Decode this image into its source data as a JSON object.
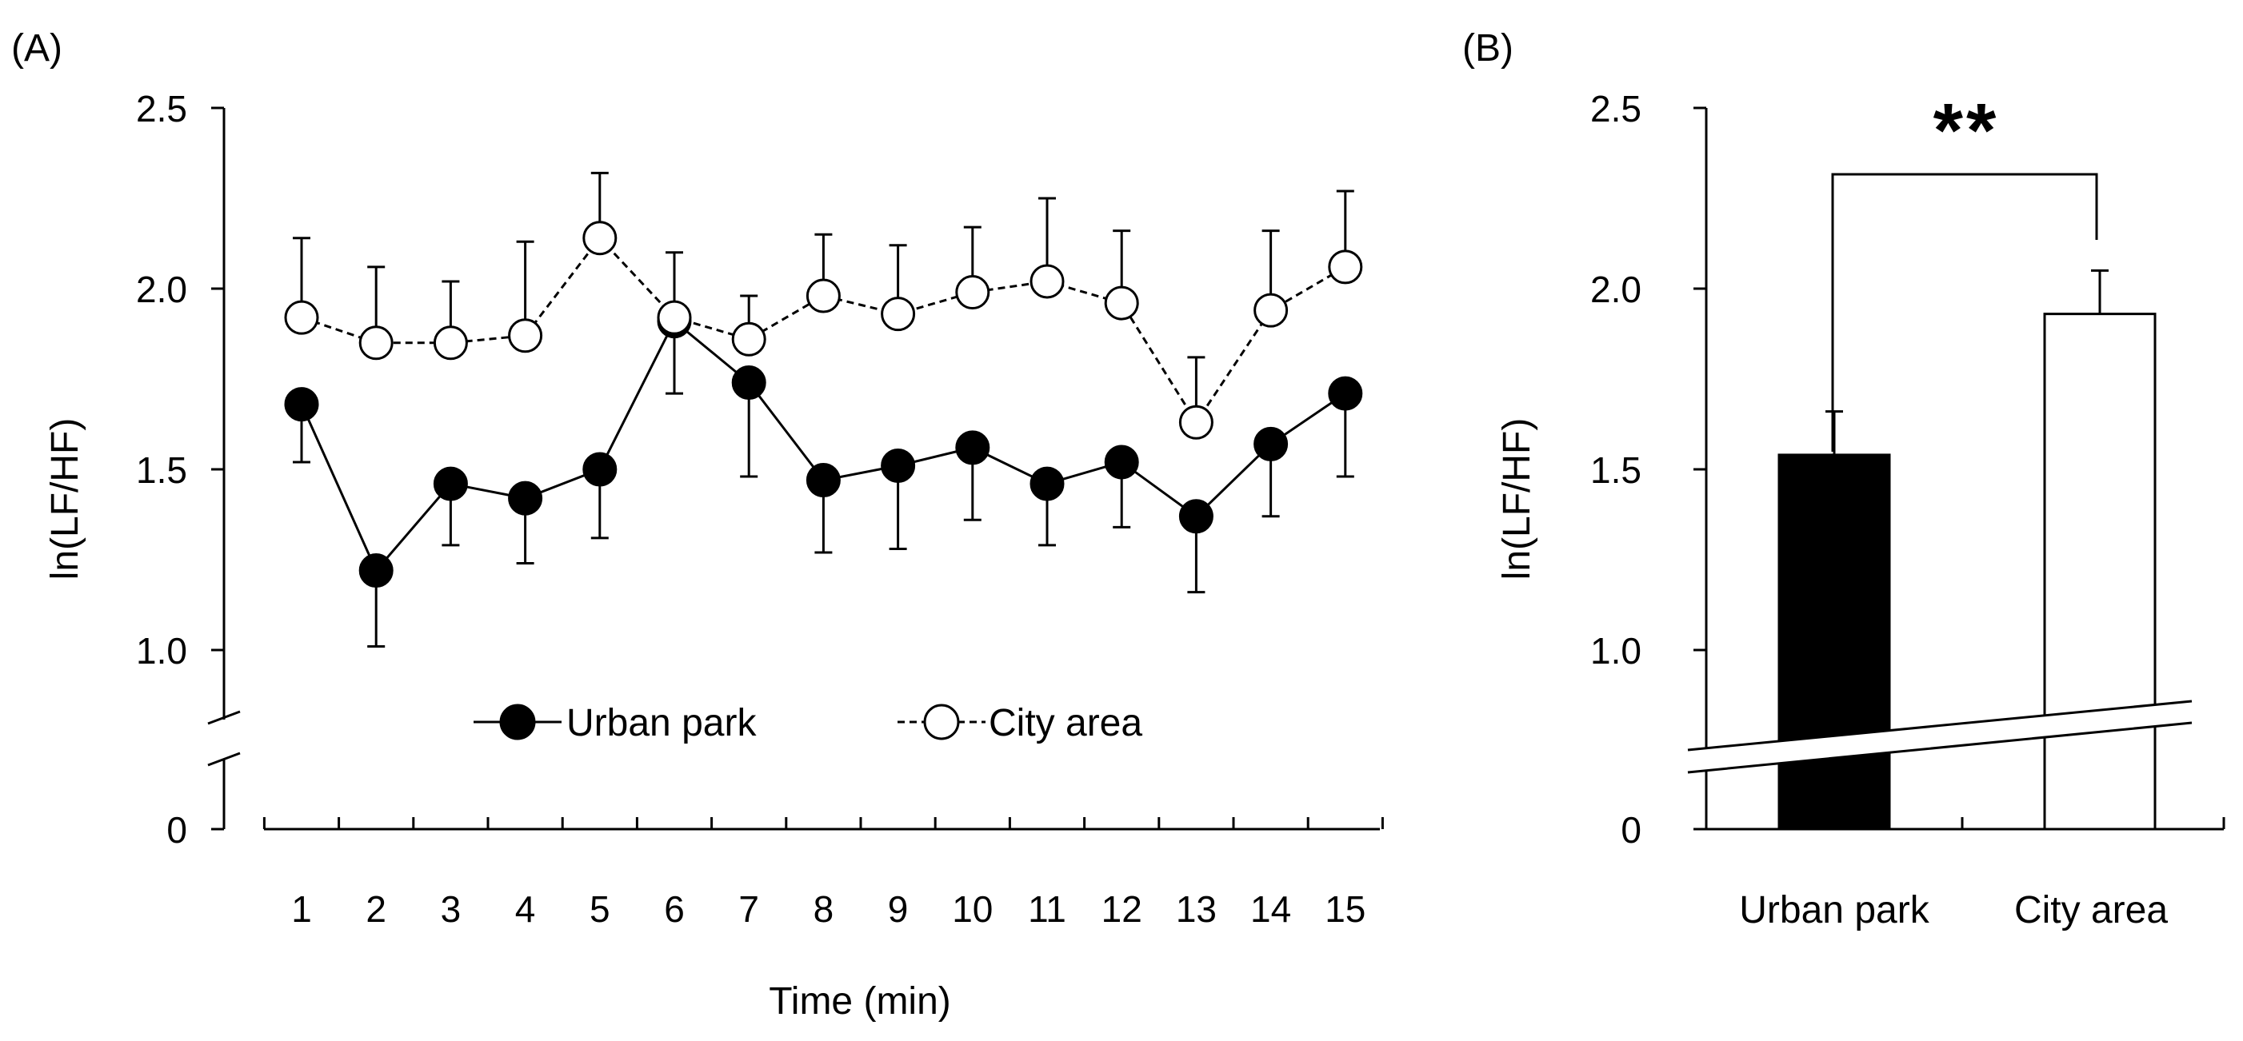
{
  "chart_data": [
    {
      "type": "line",
      "panel_label": "(A)",
      "xlabel": "Time (min)",
      "ylabel": "ln(LF/HF)",
      "ylim": [
        0,
        2.5
      ],
      "axis_break_below": 1.0,
      "y_ticks": [
        "0",
        "1.0",
        "1.5",
        "2.0",
        "2.5"
      ],
      "x_tick_labels": [
        "1",
        "2",
        "3",
        "4",
        "5",
        "6",
        "7",
        "8",
        "9",
        "10",
        "11",
        "12",
        "13",
        "14",
        "15"
      ],
      "legend": {
        "position": "bottom-center"
      },
      "series": [
        {
          "name": "Urban park",
          "marker": "filled-circle",
          "line": "solid",
          "values": [
            1.68,
            1.22,
            1.46,
            1.42,
            1.5,
            1.91,
            1.74,
            1.47,
            1.51,
            1.56,
            1.46,
            1.52,
            1.37,
            1.57,
            1.71
          ],
          "error_upper": [
            1.52,
            1.01,
            1.29,
            1.24,
            1.31,
            1.71,
            1.48,
            1.27,
            1.28,
            1.36,
            1.29,
            1.34,
            1.16,
            1.37,
            1.48
          ],
          "error_direction": "down"
        },
        {
          "name": "City area",
          "marker": "open-circle",
          "line": "dashed",
          "values": [
            1.92,
            1.85,
            1.85,
            1.87,
            2.14,
            1.92,
            1.86,
            1.98,
            1.93,
            1.99,
            2.02,
            1.96,
            1.63,
            1.94,
            2.06
          ],
          "error_upper": [
            2.14,
            2.06,
            2.02,
            2.13,
            2.32,
            2.1,
            1.98,
            2.15,
            2.12,
            2.17,
            2.25,
            2.16,
            1.81,
            2.16,
            2.27
          ],
          "error_direction": "up"
        }
      ]
    },
    {
      "type": "bar",
      "panel_label": "(B)",
      "ylabel": "ln(LF/HF)",
      "ylim": [
        0,
        2.5
      ],
      "axis_break_below": 1.0,
      "y_ticks": [
        "0",
        "1.0",
        "1.5",
        "2.0",
        "2.5"
      ],
      "categories": [
        "Urban park",
        "City area"
      ],
      "values": [
        1.54,
        1.93
      ],
      "error_upper": [
        1.66,
        2.05
      ],
      "bar_colors": [
        "#000000",
        "#ffffff"
      ],
      "significance": "**"
    }
  ]
}
